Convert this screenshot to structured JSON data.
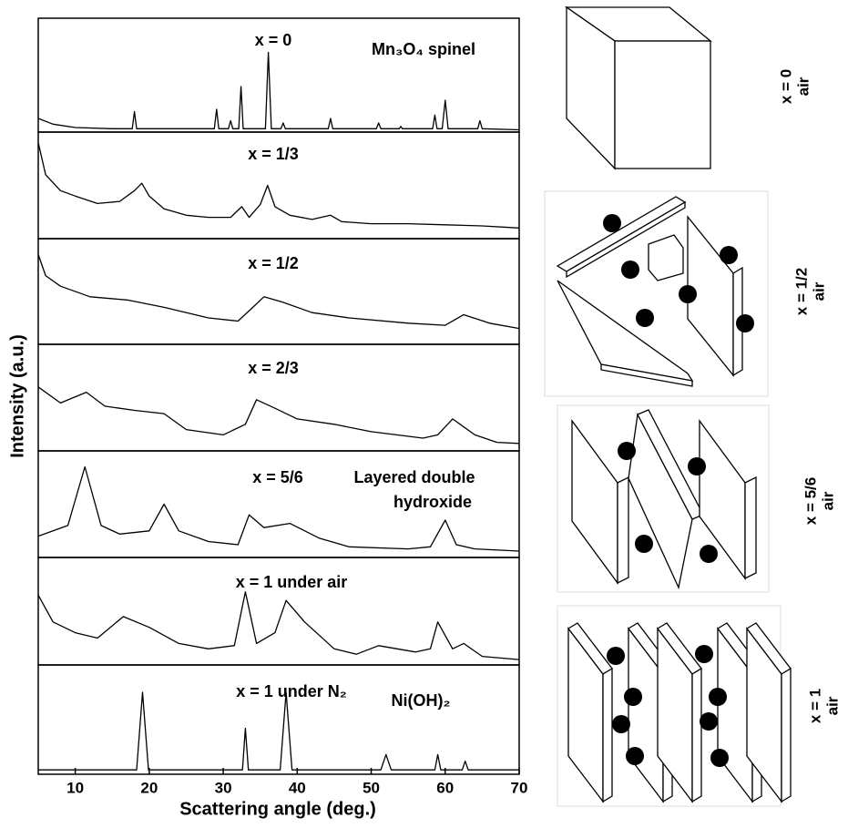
{
  "chart_data": {
    "type": "line",
    "x_label": "Scattering angle (deg.)",
    "y_label": "Intensity (a.u.)",
    "xlim": [
      5,
      70
    ],
    "xticks": [
      10,
      20,
      30,
      40,
      50,
      60,
      70
    ],
    "ylim": [
      0,
      100
    ],
    "color": "#000000",
    "annotations": [
      "Mn₃O₄ spinel",
      "Layered double",
      "hydroxide",
      "Ni(OH)₂"
    ],
    "series": [
      {
        "name": "x = 0",
        "x": [
          5,
          7,
          10,
          15,
          17.7,
          18,
          18.3,
          28.8,
          29.1,
          29.4,
          30.7,
          31,
          31.3,
          32.1,
          32.4,
          32.7,
          35.7,
          36.1,
          36.5,
          37.8,
          38.1,
          38.4,
          44.2,
          44.5,
          44.8,
          50.7,
          51,
          51.3,
          53.8,
          54,
          54.2,
          58.3,
          58.6,
          58.9,
          59.6,
          60,
          60.4,
          64.4,
          64.7,
          65,
          70
        ],
        "values": [
          12,
          7,
          4,
          3,
          3,
          18,
          3,
          3,
          20,
          3,
          3,
          10,
          3,
          3,
          40,
          3,
          3,
          70,
          3,
          3,
          8,
          3,
          3,
          12,
          3,
          3,
          8,
          3,
          3,
          5,
          3,
          3,
          15,
          3,
          3,
          28,
          3,
          3,
          10,
          3,
          2
        ]
      },
      {
        "name": "x = 1/3",
        "x": [
          5,
          6,
          8,
          10,
          13,
          16,
          18,
          19,
          20,
          22,
          25,
          28,
          31,
          32.5,
          33.5,
          35,
          36,
          37,
          39,
          42,
          44.5,
          46,
          50,
          55,
          60,
          65,
          70
        ],
        "values": [
          90,
          60,
          45,
          40,
          33,
          35,
          45,
          52,
          40,
          28,
          22,
          20,
          20,
          30,
          20,
          32,
          50,
          30,
          22,
          18,
          22,
          16,
          14,
          14,
          13,
          12,
          10
        ]
      },
      {
        "name": "x = 1/2",
        "x": [
          5,
          6,
          8,
          12,
          17,
          22,
          28,
          32,
          34,
          35.5,
          38,
          42,
          47,
          55,
          60,
          62.5,
          66,
          70
        ],
        "values": [
          85,
          65,
          55,
          45,
          42,
          35,
          25,
          22,
          35,
          45,
          40,
          30,
          25,
          20,
          18,
          28,
          20,
          15
        ]
      },
      {
        "name": "x = 2/3",
        "x": [
          5,
          8,
          11.5,
          14,
          18,
          22,
          25,
          30,
          33,
          34.5,
          37,
          40,
          45,
          50,
          57,
          59,
          61,
          64,
          67,
          70
        ],
        "values": [
          60,
          45,
          55,
          42,
          38,
          35,
          20,
          15,
          25,
          48,
          40,
          30,
          25,
          18,
          12,
          15,
          30,
          15,
          8,
          7
        ]
      },
      {
        "name": "x = 5/6",
        "x": [
          5,
          9,
          11.3,
          13.5,
          16,
          20,
          22,
          24,
          28,
          32,
          33.5,
          35.5,
          39,
          43,
          47,
          55,
          58,
          60,
          61.5,
          64,
          70
        ],
        "values": [
          20,
          30,
          85,
          30,
          22,
          25,
          50,
          25,
          15,
          12,
          40,
          28,
          32,
          18,
          10,
          8,
          10,
          35,
          12,
          8,
          6
        ]
      },
      {
        "name": "x = 1 under air",
        "x": [
          5,
          7,
          10,
          13,
          16.5,
          20,
          24,
          28,
          31.5,
          33,
          34.5,
          37,
          38.5,
          41,
          45,
          48,
          51,
          56,
          58,
          59,
          61,
          62.5,
          65,
          70
        ],
        "values": [
          65,
          40,
          30,
          25,
          45,
          35,
          20,
          15,
          18,
          68,
          20,
          30,
          60,
          40,
          15,
          10,
          18,
          12,
          15,
          40,
          15,
          20,
          8,
          5
        ]
      },
      {
        "name": "x = 1 under N₂",
        "x": [
          5,
          18.3,
          19.1,
          19.9,
          32.6,
          33,
          33.4,
          37.7,
          38.5,
          39.3,
          51.3,
          52,
          52.7,
          58.6,
          59,
          59.4,
          62.3,
          62.7,
          63.1,
          70
        ],
        "values": [
          4,
          4,
          75,
          4,
          4,
          42,
          4,
          4,
          75,
          4,
          4,
          18,
          4,
          4,
          18,
          4,
          4,
          12,
          4,
          4
        ]
      }
    ]
  },
  "diagrams": [
    {
      "label": "x = 0",
      "atmosphere": "air"
    },
    {
      "label": "x = 1/2",
      "atmosphere": "air"
    },
    {
      "label": "x = 5/6",
      "atmosphere": "air"
    },
    {
      "label": "x = 1",
      "atmosphere": "air"
    }
  ]
}
